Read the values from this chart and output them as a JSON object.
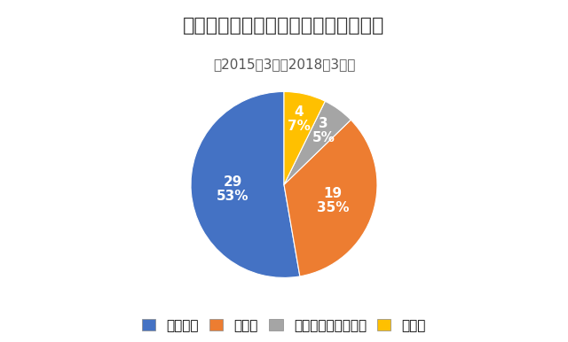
{
  "title": "ドクターヘリ搬送件数（搬送先内訳）",
  "subtitle": "〔2015年3月～2018年3月〕",
  "labels": [
    "滋賀医大",
    "三重大",
    "三重ハートセンター",
    "その他"
  ],
  "values": [
    29,
    19,
    3,
    4
  ],
  "percentages": [
    "53%",
    "35%",
    "5%",
    "7%"
  ],
  "colors": [
    "#4472C4",
    "#ED7D31",
    "#A5A5A5",
    "#FFC000"
  ],
  "background_color": "#FFFFFF",
  "title_fontsize": 16,
  "subtitle_fontsize": 11,
  "label_fontsize": 11,
  "legend_fontsize": 11,
  "startangle": 90
}
